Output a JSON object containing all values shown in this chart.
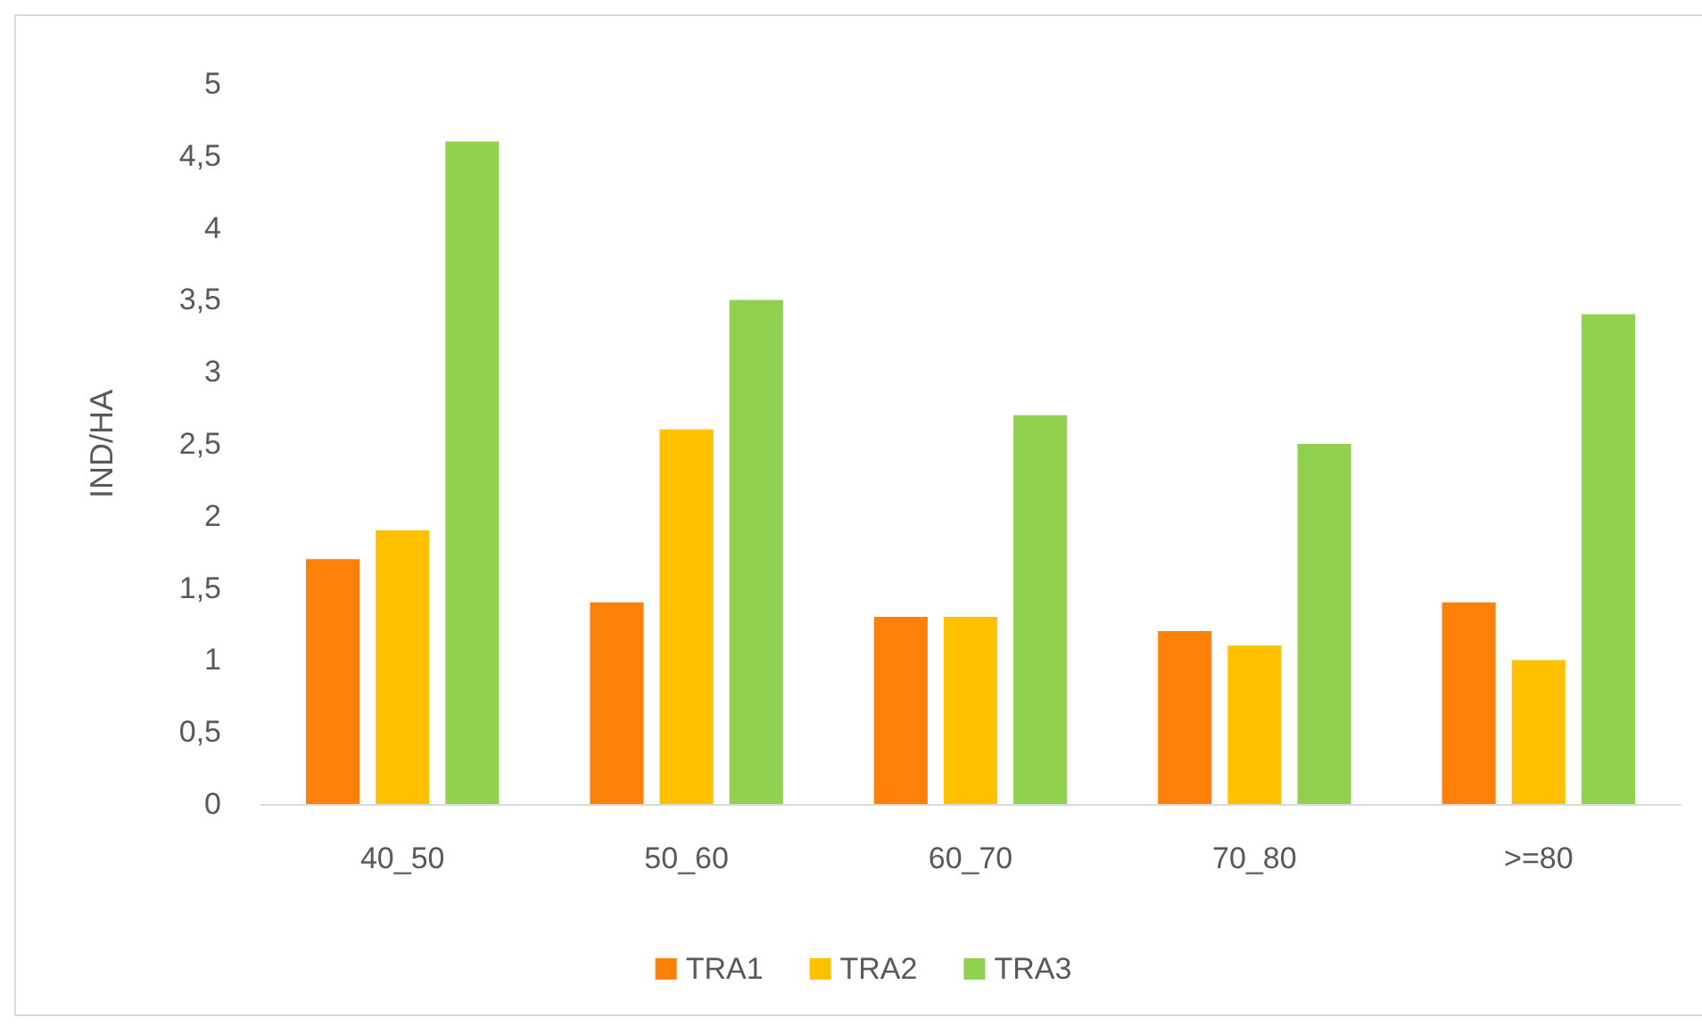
{
  "chart_data": {
    "type": "bar",
    "ylabel": "IND/HA",
    "categories": [
      "40_50",
      "50_60",
      "60_70",
      "70_80",
      ">=80"
    ],
    "series": [
      {
        "name": "TRA1",
        "color": "#fd8008",
        "values": [
          1.7,
          1.4,
          1.3,
          1.2,
          1.4
        ]
      },
      {
        "name": "TRA2",
        "color": "#ffc000",
        "values": [
          1.9,
          2.6,
          1.3,
          1.1,
          1.0
        ]
      },
      {
        "name": "TRA3",
        "color": "#92d050",
        "values": [
          4.6,
          3.5,
          2.7,
          2.5,
          3.4
        ]
      }
    ],
    "ylim": [
      0,
      5
    ],
    "yticks": [
      0,
      {
        "value": 0.5,
        "label": "0,5"
      },
      1,
      {
        "value": 1.5,
        "label": "1,5"
      },
      2,
      {
        "value": 2.5,
        "label": "2,5"
      },
      3,
      {
        "value": 3.5,
        "label": "3,5"
      },
      4,
      {
        "value": 4.5,
        "label": "4,5"
      },
      5
    ],
    "grid": false,
    "legend": "bottom"
  }
}
